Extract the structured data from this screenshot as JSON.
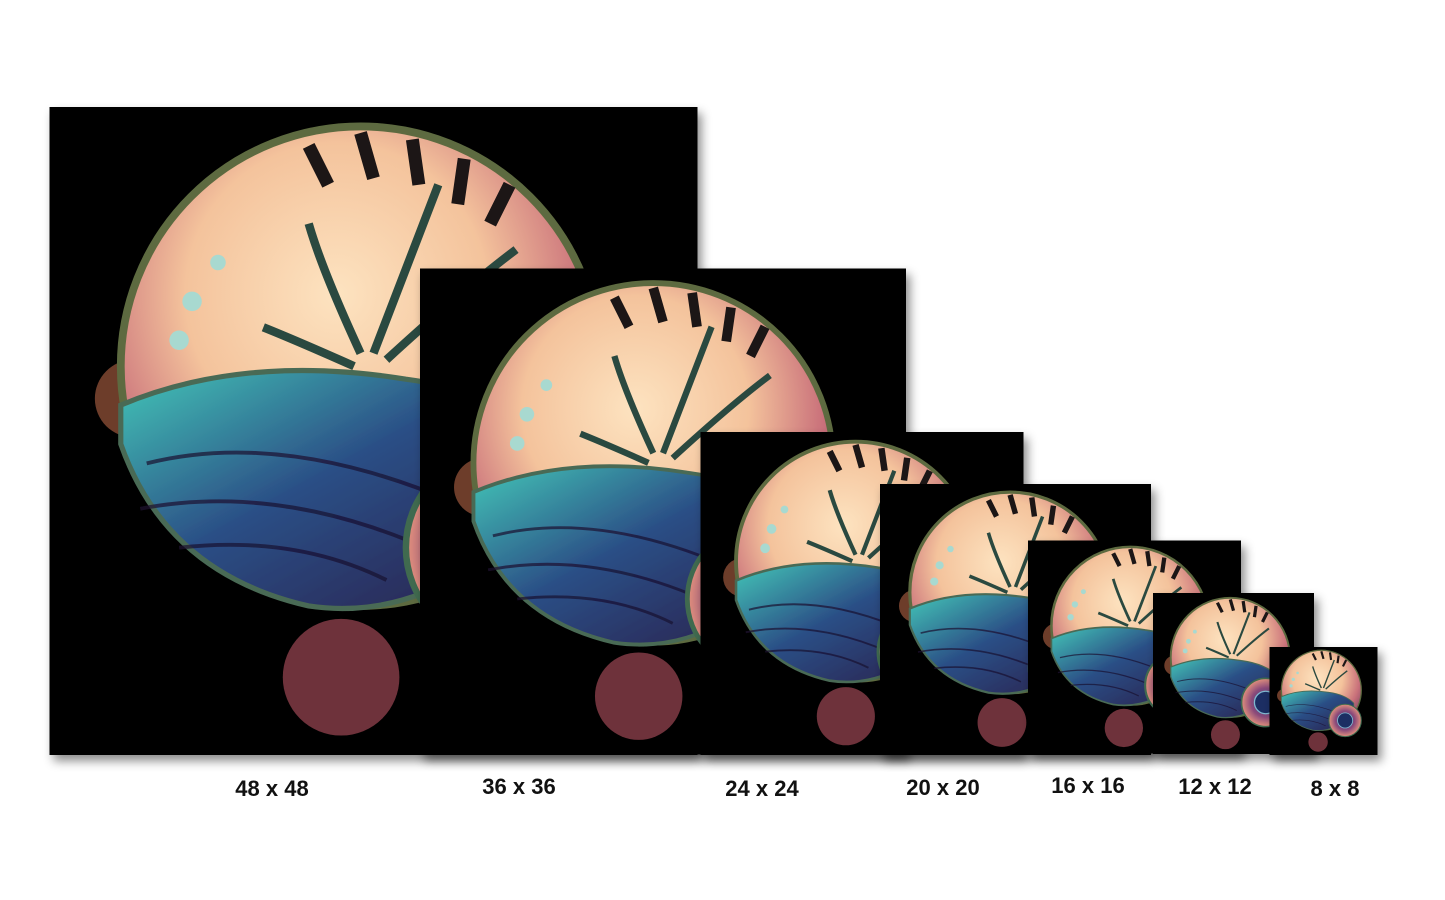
{
  "sizes": [
    {
      "label": "48 x 48"
    },
    {
      "label": "36 x 36"
    },
    {
      "label": "24 x 24"
    },
    {
      "label": "20 x 20"
    },
    {
      "label": "16 x 16"
    },
    {
      "label": "12 x 12"
    },
    {
      "label": "8 x 8"
    }
  ]
}
